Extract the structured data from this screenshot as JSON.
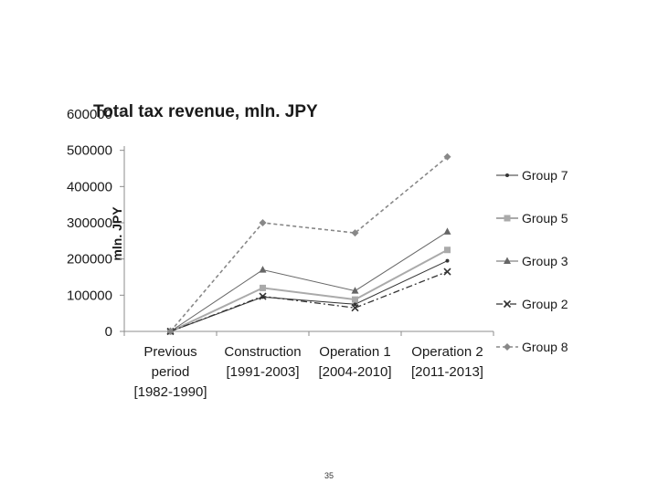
{
  "chart_data": {
    "type": "line",
    "title": "Total tax revenue, mln. JPY",
    "ylabel": "mln. JPY",
    "xlabel": "",
    "ylim": [
      0,
      600000
    ],
    "yticks": [
      "0",
      "100000",
      "200000",
      "300000",
      "400000",
      "500000",
      "600000"
    ],
    "ytick_values": [
      0,
      100000,
      200000,
      300000,
      400000,
      500000,
      600000
    ],
    "grid": false,
    "legend_position": "right",
    "categories": [
      [
        "Previous",
        "period",
        "[1982-1990]"
      ],
      [
        "Construction",
        "[1991-2003]"
      ],
      [
        "Operation 1",
        "[2004-2010]"
      ],
      [
        "Operation 2",
        "[2011-2013]"
      ]
    ],
    "series": [
      {
        "name": "Group 7",
        "color": "#333333",
        "marker": "dot",
        "dash": "solid",
        "width": 1,
        "values": [
          0,
          95000,
          75000,
          195000
        ]
      },
      {
        "name": "Group 5",
        "color": "#aaaaaa",
        "marker": "square",
        "dash": "solid",
        "width": 2,
        "values": [
          0,
          120000,
          88000,
          225000
        ]
      },
      {
        "name": "Group 3",
        "color": "#666666",
        "marker": "triangle",
        "dash": "solid",
        "width": 1,
        "values": [
          0,
          170000,
          112000,
          275000
        ]
      },
      {
        "name": "Group 2",
        "color": "#333333",
        "marker": "x",
        "dash": "dashdot",
        "width": 1.3,
        "values": [
          0,
          97000,
          65000,
          165000
        ]
      },
      {
        "name": "Group 8",
        "color": "#888888",
        "marker": "diamond",
        "dash": "dashed",
        "width": 1.6,
        "values": [
          0,
          300000,
          272000,
          482000
        ]
      }
    ]
  },
  "footer": {
    "page_number": "35"
  }
}
